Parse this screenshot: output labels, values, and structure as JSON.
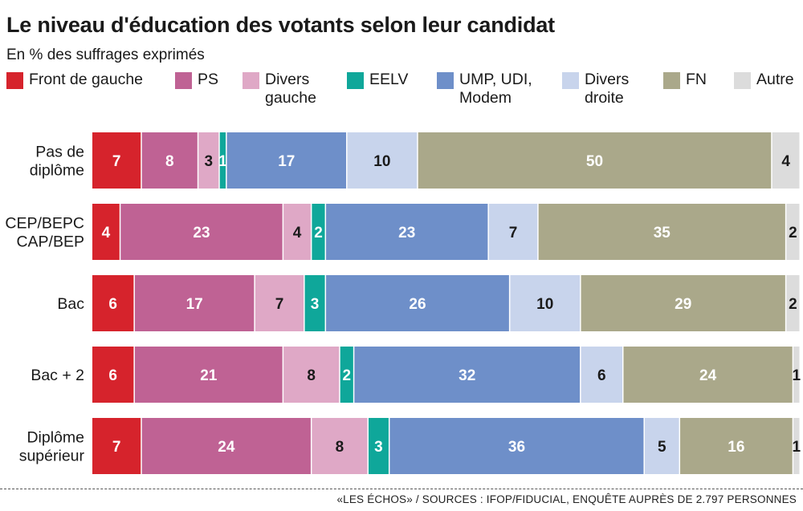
{
  "header": {
    "title": "Le niveau d'éducation des votants selon leur candidat",
    "subtitle": "En % des suffrages exprimés"
  },
  "footer": {
    "source": "«LES ÉCHOS» / SOURCES : IFOP/FIDUCIAL, ENQUÊTE AUPRÈS DE 2.797 PERSONNES"
  },
  "chart_data": {
    "type": "bar",
    "orientation": "horizontal",
    "stacked": true,
    "unit": "%",
    "categories": [
      "Pas de\ndiplôme",
      "CEP/BEPC\nCAP/BEP",
      "Bac",
      "Bac + 2",
      "Diplôme\nsupérieur"
    ],
    "legend_position": "top",
    "grid": false,
    "series": [
      {
        "name": "Front de gauche",
        "legend": "Front de gauche",
        "color": "#d6232c",
        "label_color": "#ffffff",
        "values": [
          7,
          4,
          6,
          6,
          7
        ]
      },
      {
        "name": "PS",
        "legend": "PS",
        "color": "#bf6294",
        "label_color": "#ffffff",
        "values": [
          8,
          23,
          17,
          21,
          24
        ]
      },
      {
        "name": "Divers gauche",
        "legend": "Divers\ngauche",
        "color": "#dfa8c6",
        "label_color": "#1a1a1a",
        "values": [
          3,
          4,
          7,
          8,
          8
        ]
      },
      {
        "name": "EELV",
        "legend": "EELV",
        "color": "#0fa79a",
        "label_color": "#ffffff",
        "values": [
          1,
          2,
          3,
          2,
          3
        ]
      },
      {
        "name": "UMP, UDI, Modem",
        "legend": "UMP, UDI,\nModem",
        "color": "#6e8fc9",
        "label_color": "#ffffff",
        "values": [
          17,
          23,
          26,
          32,
          36
        ]
      },
      {
        "name": "Divers droite",
        "legend": "Divers\ndroite",
        "color": "#c8d4ec",
        "label_color": "#1a1a1a",
        "values": [
          10,
          7,
          10,
          6,
          5
        ]
      },
      {
        "name": "FN",
        "legend": "FN",
        "color": "#aaa88a",
        "label_color": "#ffffff",
        "values": [
          50,
          35,
          29,
          24,
          16
        ]
      },
      {
        "name": "Autre",
        "legend": "Autre",
        "color": "#dcdcdc",
        "label_color": "#1a1a1a",
        "values": [
          4,
          2,
          2,
          1,
          1
        ]
      }
    ]
  }
}
